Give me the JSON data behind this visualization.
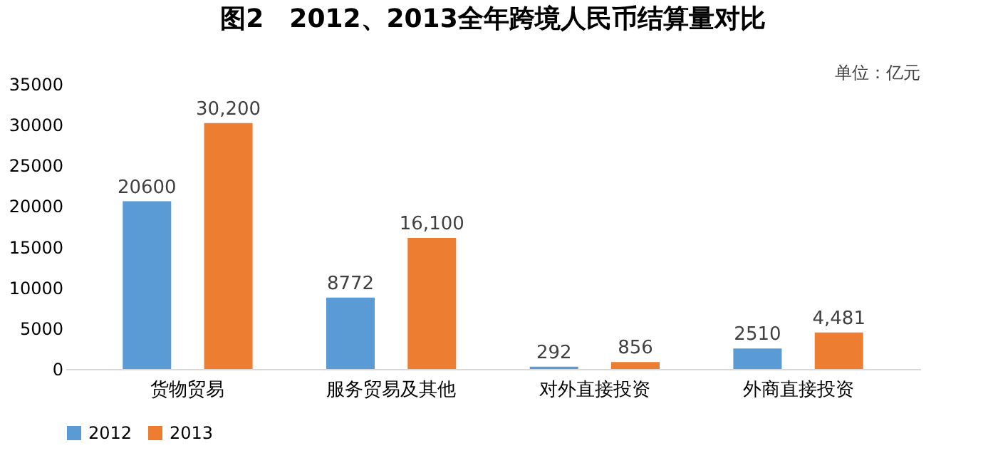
{
  "chart_data": {
    "type": "bar",
    "title": "图2　2012、2013全年跨境人民币结算量对比",
    "annotations": [
      "单位：亿元"
    ],
    "categories": [
      "货物贸易",
      "服务贸易及其他",
      "对外直接投资",
      "外商直接投资"
    ],
    "series": [
      {
        "name": "2012",
        "color": "#5b9bd5",
        "values": [
          20600,
          8772,
          292,
          2510
        ],
        "value_labels": [
          "20600",
          "8772",
          "292",
          "2510"
        ]
      },
      {
        "name": "2013",
        "color": "#ed7d31",
        "values": [
          30200,
          16100,
          856,
          4481
        ],
        "value_labels": [
          "30,200",
          "16,100",
          "856",
          "4,481"
        ]
      }
    ],
    "ylim": [
      0,
      35000
    ],
    "yticks": [
      0,
      5000,
      10000,
      15000,
      20000,
      25000,
      30000,
      35000
    ],
    "grid": false,
    "legend": "bottom"
  }
}
